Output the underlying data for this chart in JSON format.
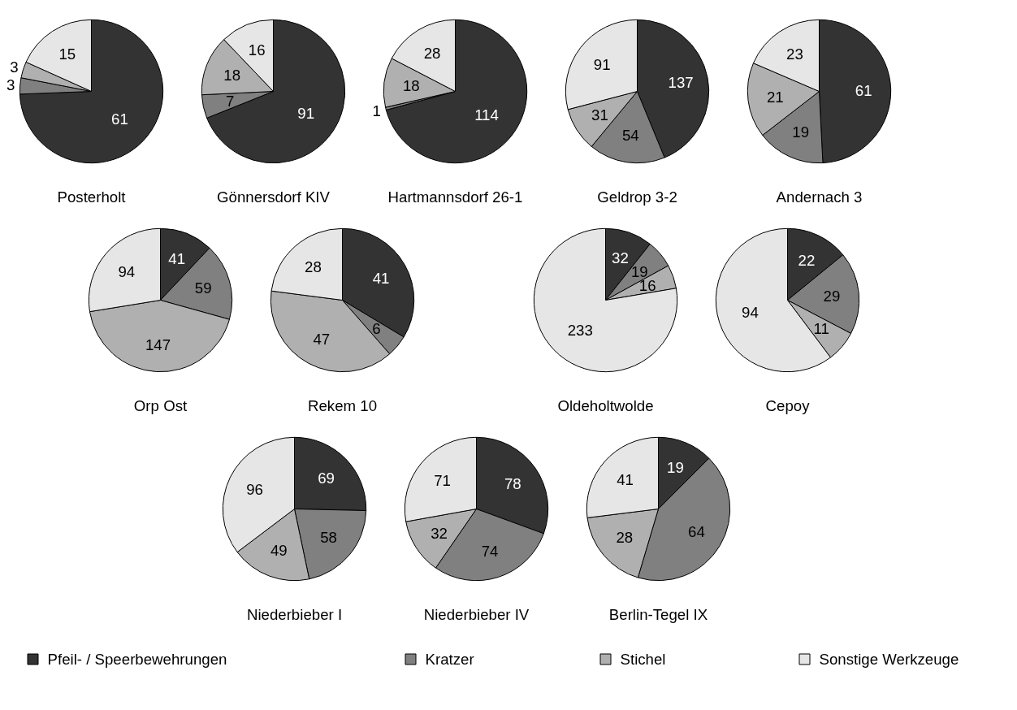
{
  "chart_data": [
    {
      "type": "pie",
      "title": "Posterholt",
      "categories": [
        "Pfeil- / Speerbewehrungen",
        "Kratzer",
        "Stichel",
        "Sonstige Werkzeuge"
      ],
      "values": [
        61,
        3,
        3,
        15
      ],
      "colors": [
        "#333333",
        "#808080",
        "#b0b0b0",
        "#e6e6e6"
      ],
      "data_labels": true,
      "legend": "bottom"
    },
    {
      "type": "pie",
      "title": "Gönnersdorf KIV",
      "values": [
        91,
        7,
        18,
        16
      ],
      "colors": [
        "#333333",
        "#808080",
        "#b0b0b0",
        "#e6e6e6"
      ],
      "data_labels": true
    },
    {
      "type": "pie",
      "title": "Hartmannsdorf 26-1",
      "values": [
        114,
        1,
        18,
        28
      ],
      "colors": [
        "#333333",
        "#808080",
        "#b0b0b0",
        "#e6e6e6"
      ],
      "data_labels": true
    },
    {
      "type": "pie",
      "title": "Geldrop 3-2",
      "values": [
        137,
        54,
        31,
        91
      ],
      "colors": [
        "#333333",
        "#808080",
        "#b0b0b0",
        "#e6e6e6"
      ],
      "data_labels": true
    },
    {
      "type": "pie",
      "title": "Andernach 3",
      "values": [
        61,
        19,
        21,
        23
      ],
      "colors": [
        "#333333",
        "#808080",
        "#b0b0b0",
        "#e6e6e6"
      ],
      "data_labels": true
    },
    {
      "type": "pie",
      "title": "Orp Ost",
      "values": [
        41,
        59,
        147,
        94
      ],
      "colors": [
        "#333333",
        "#808080",
        "#b0b0b0",
        "#e6e6e6"
      ],
      "data_labels": true
    },
    {
      "type": "pie",
      "title": "Rekem 10",
      "values": [
        41,
        6,
        47,
        28
      ],
      "colors": [
        "#333333",
        "#808080",
        "#b0b0b0",
        "#e6e6e6"
      ],
      "data_labels": true
    },
    {
      "type": "pie",
      "title": "Oldeholtwolde",
      "values": [
        32,
        19,
        16,
        233
      ],
      "colors": [
        "#333333",
        "#808080",
        "#b0b0b0",
        "#e6e6e6"
      ],
      "data_labels": true
    },
    {
      "type": "pie",
      "title": "Cepoy",
      "values": [
        22,
        29,
        11,
        94
      ],
      "colors": [
        "#333333",
        "#808080",
        "#b0b0b0",
        "#e6e6e6"
      ],
      "data_labels": true
    },
    {
      "type": "pie",
      "title": "Niederbieber I",
      "values": [
        69,
        58,
        49,
        96
      ],
      "colors": [
        "#333333",
        "#808080",
        "#b0b0b0",
        "#e6e6e6"
      ],
      "data_labels": true
    },
    {
      "type": "pie",
      "title": "Niederbieber IV",
      "values": [
        78,
        74,
        32,
        71
      ],
      "colors": [
        "#333333",
        "#808080",
        "#b0b0b0",
        "#e6e6e6"
      ],
      "data_labels": true
    },
    {
      "type": "pie",
      "title": "Berlin-Tegel IX",
      "values": [
        19,
        64,
        28,
        41
      ],
      "colors": [
        "#333333",
        "#808080",
        "#b0b0b0",
        "#e6e6e6"
      ],
      "data_labels": true
    }
  ]
}
